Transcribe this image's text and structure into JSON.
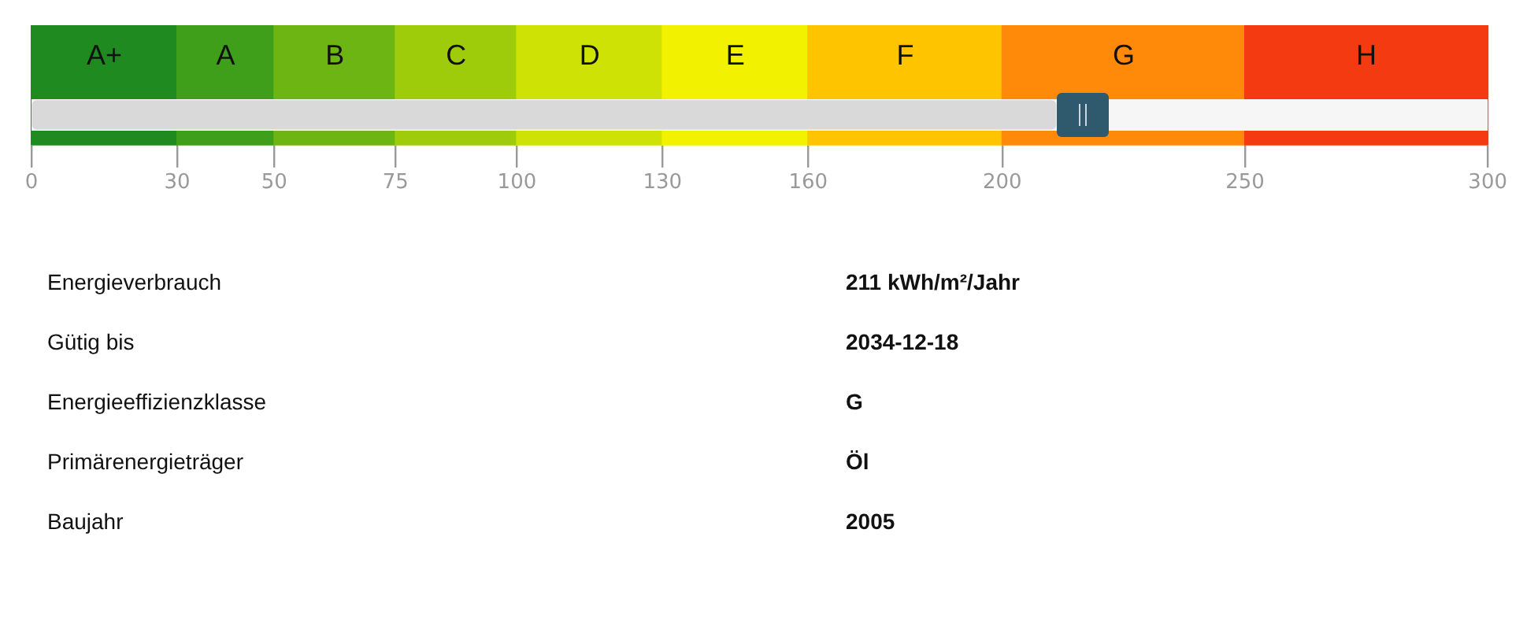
{
  "chart_data": {
    "type": "bar",
    "orientation": "horizontal",
    "categories": [
      null
    ],
    "values": [
      211
    ],
    "color": "#d9d9d9",
    "xlim": [
      0,
      300
    ],
    "xticks": [
      0,
      30,
      50,
      75,
      100,
      130,
      160,
      200,
      250,
      300
    ],
    "bands": [
      {
        "axis": "x",
        "from": 0,
        "to": 30,
        "label": "A+",
        "color": "#1f8a1f"
      },
      {
        "axis": "x",
        "from": 30,
        "to": 50,
        "label": "A",
        "color": "#3f9e1a"
      },
      {
        "axis": "x",
        "from": 50,
        "to": 75,
        "label": "B",
        "color": "#6db512"
      },
      {
        "axis": "x",
        "from": 75,
        "to": 100,
        "label": "C",
        "color": "#9fcc0a"
      },
      {
        "axis": "x",
        "from": 100,
        "to": 130,
        "label": "D",
        "color": "#cfe205"
      },
      {
        "axis": "x",
        "from": 130,
        "to": 160,
        "label": "E",
        "color": "#f2f200"
      },
      {
        "axis": "x",
        "from": 160,
        "to": 200,
        "label": "F",
        "color": "#ffc400"
      },
      {
        "axis": "x",
        "from": 200,
        "to": 250,
        "label": "G",
        "color": "#ff8a0a"
      },
      {
        "axis": "x",
        "from": 250,
        "to": 300,
        "label": "H",
        "color": "#f43a10"
      }
    ],
    "annotations": [
      "Energieverbrauch",
      "211 kWh/m²/Jahr",
      "Gütig bis",
      "2034-12-18",
      "Energieeffizienzklasse",
      "G",
      "Primärenergieträger",
      "Öl",
      "Baujahr",
      "2005"
    ]
  }
}
